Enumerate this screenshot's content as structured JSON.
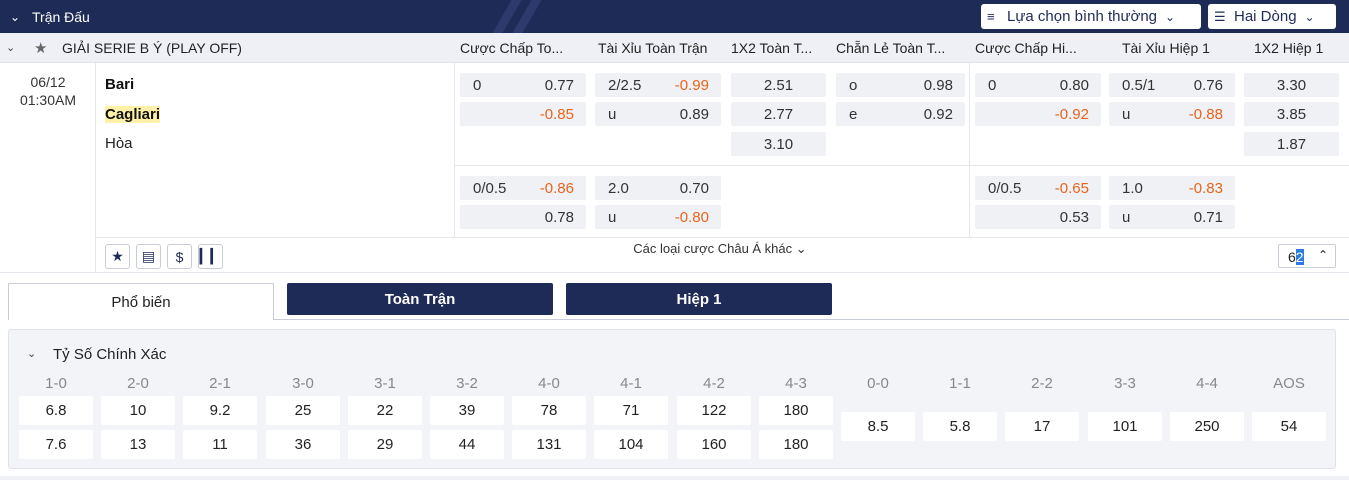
{
  "header": {
    "title": "Trận Đấu",
    "selector1": "Lựa chọn bình thường",
    "selector2": "Hai Dòng"
  },
  "league": {
    "name": "GIẢI SERIE B Ý (PLAY OFF)",
    "columns": [
      "Cược Chấp To...",
      "Tài Xỉu Toàn Trận",
      "1X2 Toàn T...",
      "Chẵn Lẻ Toàn T...",
      "Cược Chấp Hi...",
      "Tài Xỉu Hiệp 1",
      "1X2 Hiệp 1"
    ]
  },
  "match": {
    "date": "06/12",
    "time": "01:30AM",
    "home": "Bari",
    "away": "Cagliari",
    "draw": "Hòa",
    "line1": {
      "hdp_ft": {
        "row1_l": "0",
        "row1_r": "0.77",
        "row2_l": "",
        "row2_r": "-0.85"
      },
      "ou_ft": {
        "row1_l": "2/2.5",
        "row1_r": "-0.99",
        "row2_l": "u",
        "row2_r": "0.89"
      },
      "x12_ft": [
        "2.51",
        "2.77",
        "3.10"
      ],
      "oe_ft": {
        "row1_l": "o",
        "row1_r": "0.98",
        "row2_l": "e",
        "row2_r": "0.92"
      },
      "hdp_h1": {
        "row1_l": "0",
        "row1_r": "0.80",
        "row2_l": "",
        "row2_r": "-0.92"
      },
      "ou_h1": {
        "row1_l": "0.5/1",
        "row1_r": "0.76",
        "row2_l": "u",
        "row2_r": "-0.88"
      },
      "x12_h1": [
        "3.30",
        "3.85",
        "1.87"
      ]
    },
    "line2": {
      "hdp_ft": {
        "row1_l": "0/0.5",
        "row1_r": "-0.86",
        "row2_l": "",
        "row2_r": "0.78"
      },
      "ou_ft": {
        "row1_l": "2.0",
        "row1_r": "0.70",
        "row2_l": "u",
        "row2_r": "-0.80"
      },
      "hdp_h1": {
        "row1_l": "0/0.5",
        "row1_r": "-0.65",
        "row2_l": "",
        "row2_r": "0.53"
      },
      "ou_h1": {
        "row1_l": "1.0",
        "row1_r": "-0.83",
        "row2_l": "u",
        "row2_r": "0.71"
      }
    },
    "more_label": "Các loại cược Châu Á khác",
    "pager_a": "6",
    "pager_b": "2"
  },
  "tabs": [
    "Phổ biến",
    "Toàn Trận",
    "Hiệp 1"
  ],
  "correct_score": {
    "title": "Tỷ Số Chính Xác",
    "columns": [
      {
        "label": "1-0",
        "home": "6.8",
        "away": "7.6"
      },
      {
        "label": "2-0",
        "home": "10",
        "away": "13"
      },
      {
        "label": "2-1",
        "home": "9.2",
        "away": "11"
      },
      {
        "label": "3-0",
        "home": "25",
        "away": "36"
      },
      {
        "label": "3-1",
        "home": "22",
        "away": "29"
      },
      {
        "label": "3-2",
        "home": "39",
        "away": "44"
      },
      {
        "label": "4-0",
        "home": "78",
        "away": "131"
      },
      {
        "label": "4-1",
        "home": "71",
        "away": "104"
      },
      {
        "label": "4-2",
        "home": "122",
        "away": "160"
      },
      {
        "label": "4-3",
        "home": "180",
        "away": "180"
      }
    ],
    "draws": [
      {
        "label": "0-0",
        "odd": "8.5"
      },
      {
        "label": "1-1",
        "odd": "5.8"
      },
      {
        "label": "2-2",
        "odd": "17"
      },
      {
        "label": "3-3",
        "odd": "101"
      },
      {
        "label": "4-4",
        "odd": "250"
      },
      {
        "label": "AOS",
        "odd": "54"
      }
    ]
  },
  "colors": {
    "navy": "#1f2b57",
    "negative": "#e8641e",
    "highlight": "#fff2a8"
  }
}
